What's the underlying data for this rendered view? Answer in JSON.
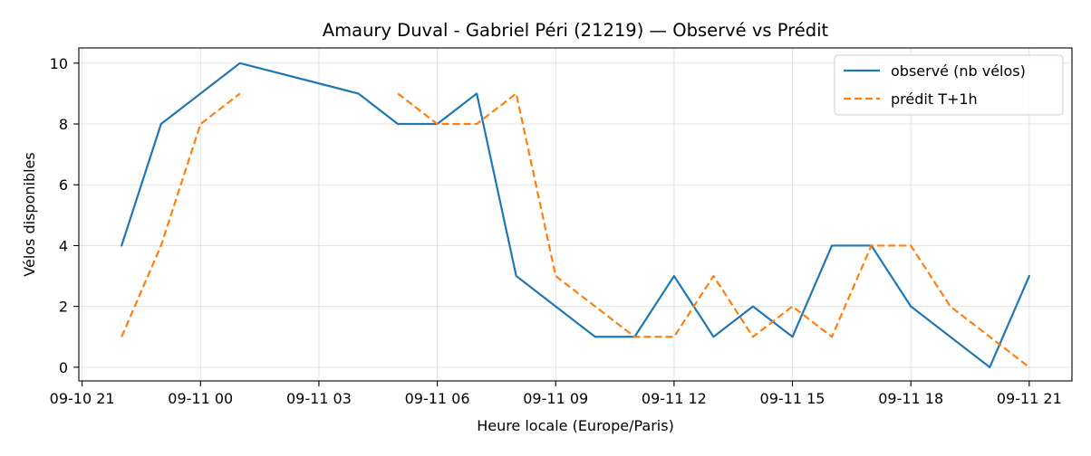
{
  "chart_data": {
    "type": "line",
    "title": "Amaury Duval - Gabriel Péri (21219) — Observé vs Prédit",
    "xlabel": "Heure locale (Europe/Paris)",
    "ylabel": "Vélos disponibles",
    "x_ticks": [
      {
        "value": "2025-09-10T21:00",
        "label": "09-10 21"
      },
      {
        "value": "2025-09-11T00:00",
        "label": "09-11 00"
      },
      {
        "value": "2025-09-11T03:00",
        "label": "09-11 03"
      },
      {
        "value": "2025-09-11T06:00",
        "label": "09-11 06"
      },
      {
        "value": "2025-09-11T09:00",
        "label": "09-11 09"
      },
      {
        "value": "2025-09-11T12:00",
        "label": "09-11 12"
      },
      {
        "value": "2025-09-11T15:00",
        "label": "09-11 15"
      },
      {
        "value": "2025-09-11T18:00",
        "label": "09-11 18"
      },
      {
        "value": "2025-09-11T21:00",
        "label": "09-11 21"
      }
    ],
    "xlim": [
      "2025-09-10T20:55",
      "2025-09-11T22:05"
    ],
    "y_ticks": [
      0,
      2,
      4,
      6,
      8,
      10
    ],
    "ylim": [
      -0.45,
      10.5
    ],
    "grid": true,
    "legend_position": "top-right",
    "series": [
      {
        "name": "observé (nb vélos)",
        "color": "#1f77b4",
        "dash": "solid",
        "points": [
          {
            "x": "2025-09-10T22:00",
            "y": 4
          },
          {
            "x": "2025-09-10T23:00",
            "y": 8
          },
          {
            "x": "2025-09-11T01:00",
            "y": 10
          },
          {
            "x": "2025-09-11T04:00",
            "y": 9
          },
          {
            "x": "2025-09-11T05:00",
            "y": 8
          },
          {
            "x": "2025-09-11T06:00",
            "y": 8
          },
          {
            "x": "2025-09-11T07:00",
            "y": 9
          },
          {
            "x": "2025-09-11T08:00",
            "y": 3
          },
          {
            "x": "2025-09-11T10:00",
            "y": 1
          },
          {
            "x": "2025-09-11T11:00",
            "y": 1
          },
          {
            "x": "2025-09-11T12:00",
            "y": 3
          },
          {
            "x": "2025-09-11T13:00",
            "y": 1
          },
          {
            "x": "2025-09-11T14:00",
            "y": 2
          },
          {
            "x": "2025-09-11T15:00",
            "y": 1
          },
          {
            "x": "2025-09-11T16:00",
            "y": 4
          },
          {
            "x": "2025-09-11T17:00",
            "y": 4
          },
          {
            "x": "2025-09-11T18:00",
            "y": 2
          },
          {
            "x": "2025-09-11T20:00",
            "y": 0
          },
          {
            "x": "2025-09-11T21:00",
            "y": 3
          }
        ]
      },
      {
        "name": "prédit T+1h",
        "color": "#ff7f0e",
        "dash": "dashed",
        "segments": [
          [
            {
              "x": "2025-09-10T22:00",
              "y": 1
            },
            {
              "x": "2025-09-10T23:00",
              "y": 4
            },
            {
              "x": "2025-09-11T00:00",
              "y": 8
            },
            {
              "x": "2025-09-11T01:00",
              "y": 9
            }
          ],
          [
            {
              "x": "2025-09-11T05:00",
              "y": 9
            },
            {
              "x": "2025-09-11T06:00",
              "y": 8
            },
            {
              "x": "2025-09-11T07:00",
              "y": 8
            },
            {
              "x": "2025-09-11T08:00",
              "y": 9
            },
            {
              "x": "2025-09-11T09:00",
              "y": 3
            },
            {
              "x": "2025-09-11T11:00",
              "y": 1
            },
            {
              "x": "2025-09-11T12:00",
              "y": 1
            },
            {
              "x": "2025-09-11T13:00",
              "y": 3
            },
            {
              "x": "2025-09-11T14:00",
              "y": 1
            },
            {
              "x": "2025-09-11T15:00",
              "y": 2
            },
            {
              "x": "2025-09-11T16:00",
              "y": 1
            },
            {
              "x": "2025-09-11T17:00",
              "y": 4
            },
            {
              "x": "2025-09-11T18:00",
              "y": 4
            },
            {
              "x": "2025-09-11T19:00",
              "y": 2
            },
            {
              "x": "2025-09-11T21:00",
              "y": 0
            }
          ]
        ]
      }
    ]
  }
}
